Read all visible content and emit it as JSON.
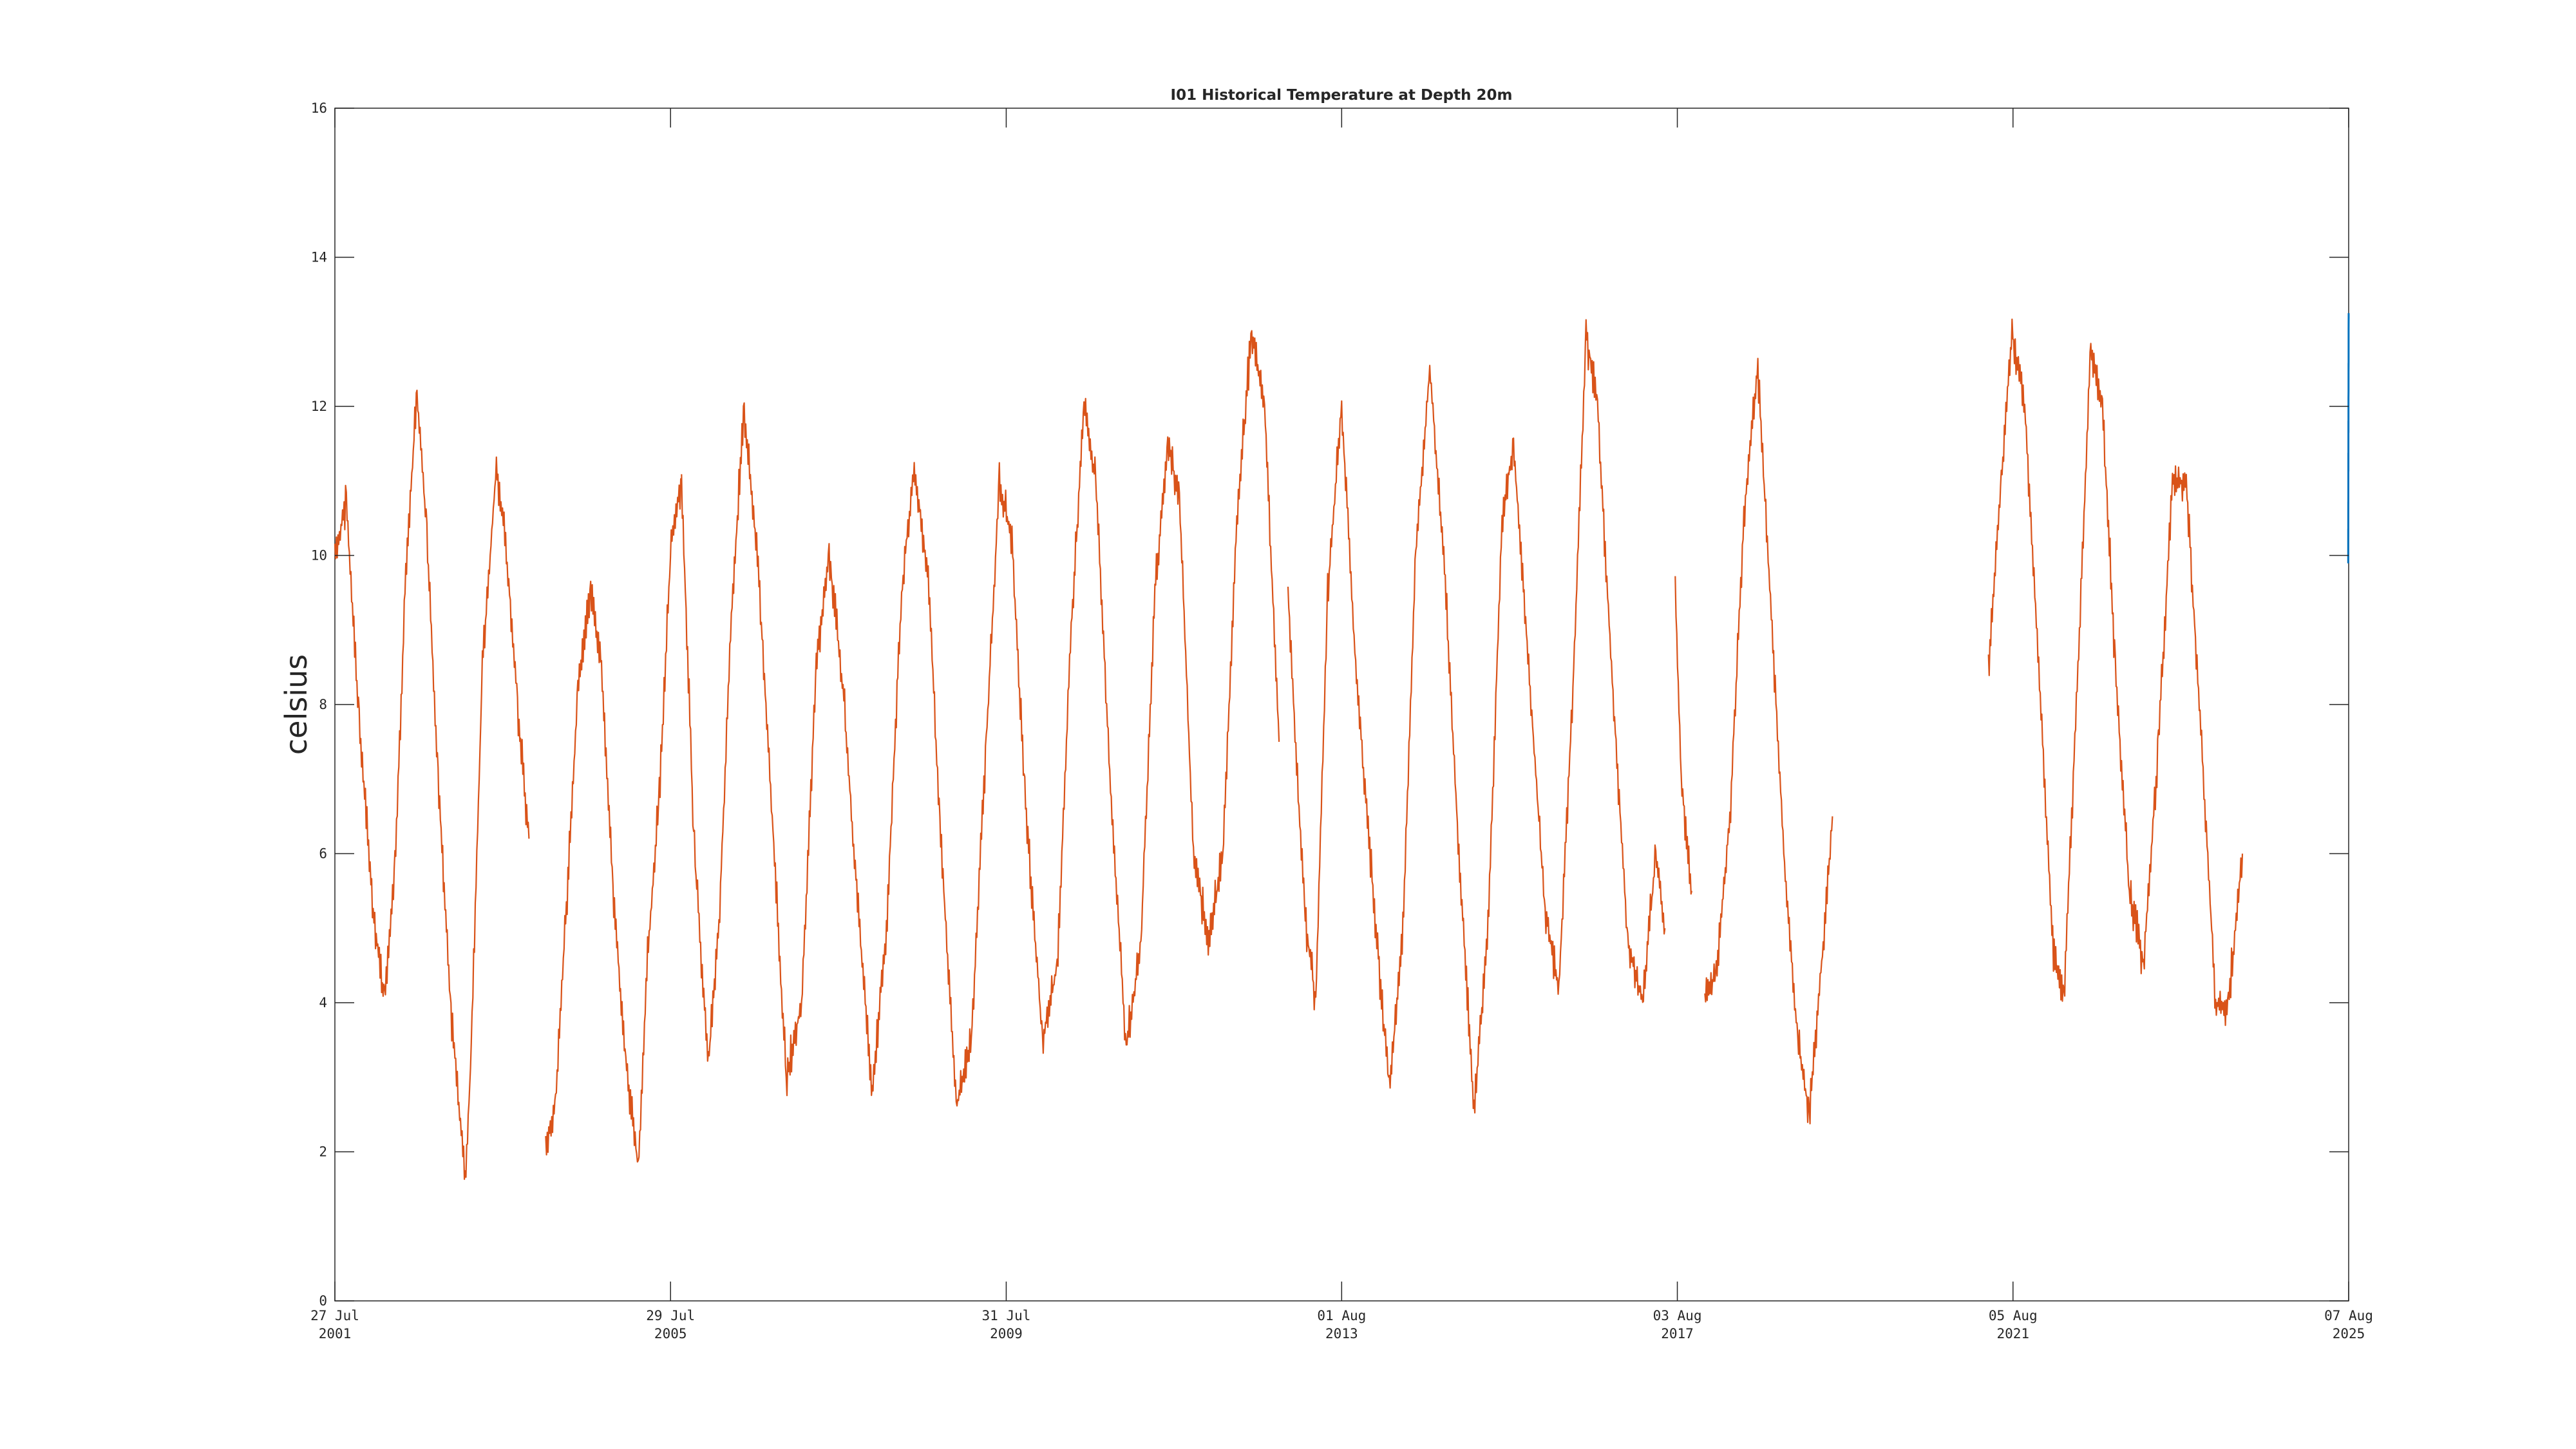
{
  "chart_data": {
    "type": "line",
    "title": "I01 Historical Temperature at Depth 20m",
    "xlabel": "",
    "ylabel": "celsius",
    "xlim": [
      "2001-07-27",
      "2025-08-07"
    ],
    "ylim": [
      0,
      16
    ],
    "yticks": [
      0,
      2,
      4,
      6,
      8,
      10,
      12,
      14,
      16
    ],
    "xticks": [
      {
        "date": "2001-07-27",
        "line1": "27 Jul",
        "line2": "2001"
      },
      {
        "date": "2005-07-29",
        "line1": "29 Jul",
        "line2": "2005"
      },
      {
        "date": "2009-07-31",
        "line1": "31 Jul",
        "line2": "2009"
      },
      {
        "date": "2013-08-01",
        "line1": "01 Aug",
        "line2": "2013"
      },
      {
        "date": "2017-08-03",
        "line1": "03 Aug",
        "line2": "2017"
      },
      {
        "date": "2021-08-05",
        "line1": "05 Aug",
        "line2": "2021"
      },
      {
        "date": "2025-08-07",
        "line1": "07 Aug",
        "line2": "2025"
      }
    ],
    "grid": false,
    "colors": {
      "historical": "#D95319",
      "recent": "#0072BD",
      "axis": "#262626"
    },
    "series": [
      {
        "color": "#D95319",
        "segments": [
          {
            "x": [
              "2001-07-27",
              "2001-09-15",
              "2001-11-10",
              "2002-01-10",
              "2002-03-01",
              "2002-04-15",
              "2002-06-01",
              "2002-07-20",
              "2002-09-01",
              "2002-10-20",
              "2002-12-15",
              "2003-02-15",
              "2003-03-10",
              "2003-05-01",
              "2003-07-01",
              "2003-08-10",
              "2003-10-01",
              "2003-11-20"
            ],
            "y": [
              10.0,
              10.7,
              7.8,
              5.2,
              4.0,
              5.8,
              9.8,
              12.2,
              10.3,
              7.0,
              3.9,
              1.6,
              3.1,
              8.5,
              11.2,
              10.2,
              8.0,
              6.2
            ]
          },
          {
            "x": [
              "2004-02-01",
              "2004-03-15",
              "2004-05-01",
              "2004-06-20",
              "2004-08-15",
              "2004-10-01",
              "2004-11-20",
              "2005-01-15",
              "2005-03-10",
              "2005-04-20",
              "2005-06-10",
              "2005-08-01",
              "2005-09-15"
            ],
            "y": [
              2.0,
              2.7,
              5.3,
              8.2,
              9.6,
              8.5,
              5.5,
              3.2,
              1.8,
              4.6,
              6.8,
              10.2,
              11.0
            ]
          },
          {
            "x": [
              "2005-09-15",
              "2005-11-10",
              "2006-01-10",
              "2006-02-25",
              "2006-04-20",
              "2006-06-15",
              "2006-08-15",
              "2006-10-15",
              "2006-12-15",
              "2007-02-20",
              "2007-04-25",
              "2007-06-20",
              "2007-08-20",
              "2007-10-25",
              "2007-12-25",
              "2008-02-25",
              "2008-05-01",
              "2008-06-25",
              "2008-08-25",
              "2008-10-15",
              "2008-12-25",
              "2009-03-01",
              "2009-05-05",
              "2009-07-01",
              "2009-08-25",
              "2009-10-20",
              "2010-01-05",
              "2010-03-10",
              "2010-05-10",
              "2010-07-05",
              "2010-08-25",
              "2010-11-01",
              "2011-01-05",
              "2011-03-10",
              "2011-05-10",
              "2011-07-05",
              "2011-08-25",
              "2011-10-25",
              "2012-01-01",
              "2012-03-01",
              "2012-05-01",
              "2012-07-05",
              "2012-08-30",
              "2012-11-01"
            ],
            "y": [
              11.0,
              6.0,
              3.2,
              5.0,
              9.2,
              12.0,
              9.8,
              6.5,
              3.0,
              4.0,
              8.5,
              10.0,
              8.2,
              5.2,
              2.8,
              5.0,
              9.5,
              11.2,
              9.7,
              6.4,
              2.6,
              3.5,
              7.5,
              11.0,
              10.2,
              6.8,
              3.5,
              4.5,
              9.0,
              12.0,
              11.0,
              6.7,
              3.4,
              4.8,
              9.5,
              11.5,
              10.8,
              6.0,
              4.8,
              6.0,
              10.5,
              13.0,
              12.0,
              7.5
            ]
          },
          {
            "x": [
              "2012-12-10",
              "2013-02-20",
              "2013-04-10",
              "2013-06-01",
              "2013-08-01",
              "2013-10-01",
              "2013-12-15",
              "2014-02-25",
              "2014-04-25",
              "2014-06-20",
              "2014-08-20",
              "2014-10-20",
              "2014-12-25",
              "2015-03-01",
              "2015-05-01",
              "2015-07-01",
              "2015-08-20",
              "2015-10-25",
              "2016-01-05",
              "2016-03-05",
              "2016-05-05",
              "2016-07-01",
              "2016-08-20",
              "2016-10-20",
              "2016-12-30",
              "2017-03-05",
              "2017-05-01",
              "2017-06-10"
            ],
            "y": [
              9.5,
              5.2,
              4.0,
              9.5,
              12.0,
              8.5,
              5.5,
              2.8,
              5.0,
              10.0,
              12.5,
              10.0,
              6.0,
              2.5,
              5.0,
              10.5,
              11.5,
              8.5,
              5.2,
              4.2,
              8.2,
              13.0,
              12.0,
              8.5,
              4.8,
              4.0,
              6.0,
              5.0
            ]
          },
          {
            "x": [
              "2017-07-25",
              "2017-08-20",
              "2017-10-05"
            ],
            "y": [
              9.5,
              7.0,
              5.5
            ]
          },
          {
            "x": [
              "2017-12-01",
              "2018-01-20",
              "2018-03-20",
              "2018-05-20",
              "2018-07-20",
              "2018-09-20",
              "2018-11-20",
              "2019-01-10",
              "2019-03-01",
              "2019-05-01",
              "2019-06-10"
            ],
            "y": [
              4.0,
              4.4,
              6.5,
              10.5,
              12.5,
              9.0,
              5.5,
              3.5,
              2.5,
              4.8,
              6.5
            ]
          },
          {
            "x": [
              "2021-04-20",
              "2021-06-15",
              "2021-08-01",
              "2021-09-25",
              "2021-11-25",
              "2022-01-25",
              "2022-03-15",
              "2022-05-15",
              "2022-07-10",
              "2022-08-30",
              "2022-10-25",
              "2022-12-25",
              "2023-02-25",
              "2023-05-01",
              "2023-07-01",
              "2023-08-30",
              "2023-11-05",
              "2024-01-05",
              "2024-03-01",
              "2024-05-01"
            ],
            "y": [
              8.5,
              11.0,
              13.0,
              12.0,
              8.5,
              4.8,
              4.0,
              8.5,
              12.8,
              12.0,
              8.5,
              5.5,
              4.5,
              7.5,
              11.0,
              11.0,
              7.5,
              4.0,
              4.0,
              6.0
            ]
          }
        ]
      },
      {
        "color": "#0072BD",
        "segments": [
          {
            "x": [
              "2025-08-05",
              "2025-08-07"
            ],
            "y": [
              10.0,
              13.3
            ]
          }
        ]
      }
    ]
  }
}
